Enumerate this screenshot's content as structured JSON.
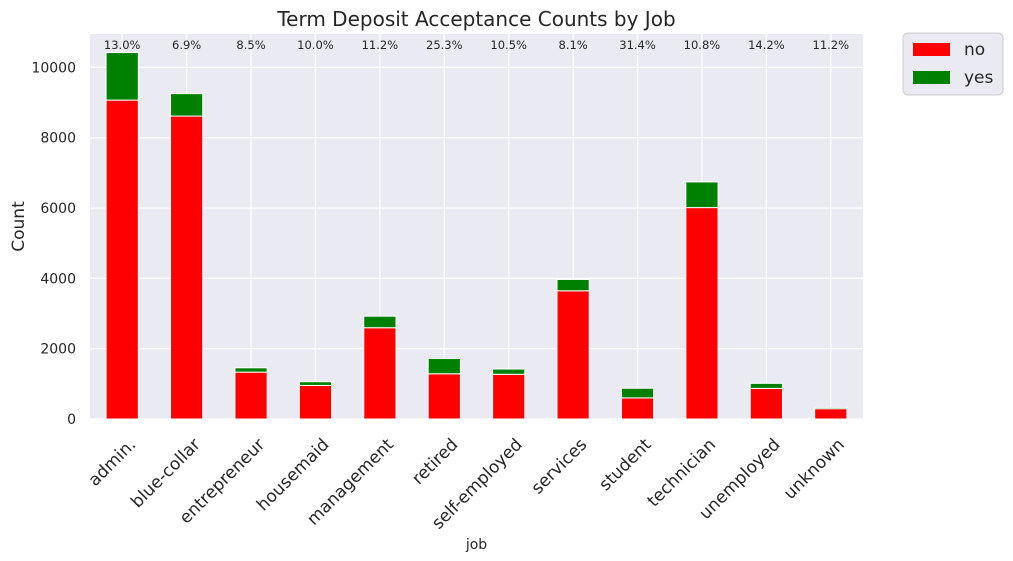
{
  "chart_data": {
    "type": "bar",
    "stacked": true,
    "title": "Term Deposit Acceptance Counts by Job",
    "xlabel": "job",
    "ylabel": "Count",
    "ylim": [
      0,
      10950
    ],
    "yticks": [
      0,
      2000,
      4000,
      6000,
      8000,
      10000
    ],
    "grid": true,
    "legend_position": "outside-top-right",
    "categories": [
      "admin.",
      "blue-collar",
      "entrepreneur",
      "housemaid",
      "management",
      "retired",
      "self-employed",
      "services",
      "student",
      "technician",
      "unemployed",
      "unknown"
    ],
    "series": [
      {
        "name": "no",
        "color": "#ff0000",
        "values": [
          9070,
          8616,
          1332,
          954,
          2596,
          1286,
          1272,
          3646,
          600,
          6013,
          870,
          293
        ]
      },
      {
        "name": "yes",
        "color": "#008000",
        "values": [
          1352,
          638,
          124,
          106,
          328,
          434,
          149,
          323,
          275,
          730,
          144,
          37
        ]
      }
    ],
    "annotations": [
      "13.0%",
      "6.9%",
      "8.5%",
      "10.0%",
      "11.2%",
      "25.3%",
      "10.5%",
      "8.1%",
      "31.4%",
      "10.8%",
      "14.2%",
      "11.2%"
    ]
  }
}
